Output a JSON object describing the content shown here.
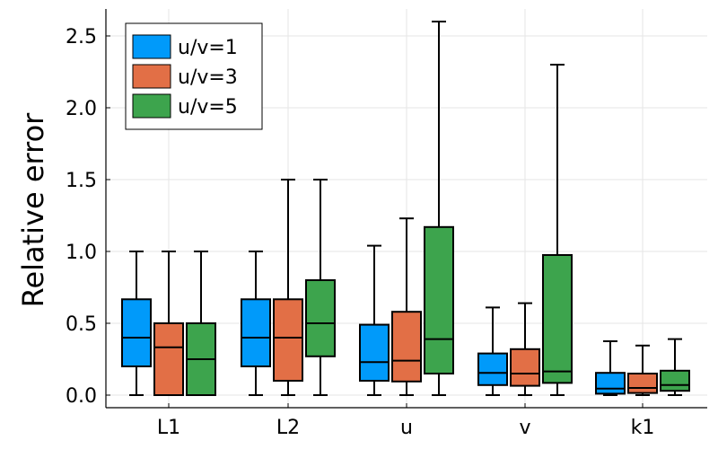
{
  "chart_data": {
    "type": "box",
    "title": "",
    "xlabel": "",
    "ylabel": "Relative error",
    "ylim": [
      -0.08,
      2.68
    ],
    "yticks": [
      0.0,
      0.5,
      1.0,
      1.5,
      2.0,
      2.5
    ],
    "ytick_labels": [
      "0.0",
      "0.5",
      "1.0",
      "1.5",
      "2.0",
      "2.5"
    ],
    "categories": [
      "L1",
      "L2",
      "u",
      "v",
      "k1"
    ],
    "grid": true,
    "legend_position": "top-left",
    "series": [
      {
        "name": "u/v=1",
        "color": "#009AFA",
        "boxes": [
          {
            "min": 0.0,
            "q1": 0.2,
            "median": 0.4,
            "q3": 0.667,
            "max": 1.0
          },
          {
            "min": 0.0,
            "q1": 0.2,
            "median": 0.4,
            "q3": 0.667,
            "max": 1.0
          },
          {
            "min": 0.0,
            "q1": 0.1,
            "median": 0.23,
            "q3": 0.49,
            "max": 1.04
          },
          {
            "min": 0.0,
            "q1": 0.07,
            "median": 0.155,
            "q3": 0.29,
            "max": 0.61
          },
          {
            "min": 0.0,
            "q1": 0.01,
            "median": 0.045,
            "q3": 0.155,
            "max": 0.375
          }
        ]
      },
      {
        "name": "u/v=3",
        "color": "#E26F46",
        "boxes": [
          {
            "min": 0.0,
            "q1": 0.0,
            "median": 0.333,
            "q3": 0.5,
            "max": 1.0
          },
          {
            "min": 0.0,
            "q1": 0.1,
            "median": 0.4,
            "q3": 0.667,
            "max": 1.5
          },
          {
            "min": 0.0,
            "q1": 0.095,
            "median": 0.24,
            "q3": 0.58,
            "max": 1.23
          },
          {
            "min": 0.0,
            "q1": 0.065,
            "median": 0.15,
            "q3": 0.32,
            "max": 0.64
          },
          {
            "min": 0.0,
            "q1": 0.015,
            "median": 0.05,
            "q3": 0.15,
            "max": 0.345
          }
        ]
      },
      {
        "name": "u/v=5",
        "color": "#3DA44D",
        "boxes": [
          {
            "min": 0.0,
            "q1": 0.0,
            "median": 0.25,
            "q3": 0.5,
            "max": 1.0
          },
          {
            "min": 0.0,
            "q1": 0.27,
            "median": 0.5,
            "q3": 0.8,
            "max": 1.5
          },
          {
            "min": 0.0,
            "q1": 0.15,
            "median": 0.39,
            "q3": 1.17,
            "max": 2.6
          },
          {
            "min": 0.0,
            "q1": 0.085,
            "median": 0.165,
            "q3": 0.975,
            "max": 2.3
          },
          {
            "min": 0.0,
            "q1": 0.03,
            "median": 0.07,
            "q3": 0.17,
            "max": 0.39
          }
        ]
      }
    ]
  }
}
